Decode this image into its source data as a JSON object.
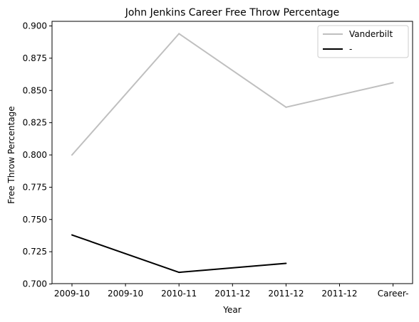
{
  "chart_data": {
    "type": "line",
    "title": "John Jenkins  Career Free Throw Percentage",
    "xlabel": "Year",
    "ylabel": "Free Throw Percentage",
    "categories": [
      "2009-10",
      "2009-10",
      "2010-11",
      "2011-12",
      "2011-12",
      "2011-12",
      "Career-"
    ],
    "ylim": [
      0.7,
      0.9
    ],
    "yticks": [
      0.7,
      0.725,
      0.75,
      0.775,
      0.8,
      0.825,
      0.85,
      0.875,
      0.9
    ],
    "ytick_labels": [
      "0.700",
      "0.725",
      "0.750",
      "0.775",
      "0.800",
      "0.825",
      "0.850",
      "0.875",
      "0.900"
    ],
    "grid": false,
    "legend_position": "top-right",
    "series": [
      {
        "name": "Vanderbilt",
        "color": "#bfbfbf",
        "points": [
          {
            "x_index": 0,
            "y": 0.8
          },
          {
            "x_index": 2,
            "y": 0.894
          },
          {
            "x_index": 4,
            "y": 0.837
          },
          {
            "x_index": 6,
            "y": 0.856
          }
        ]
      },
      {
        "name": "-",
        "color": "#000000",
        "points": [
          {
            "x_index": 0,
            "y": 0.738
          },
          {
            "x_index": 2,
            "y": 0.709
          },
          {
            "x_index": 4,
            "y": 0.716
          }
        ]
      }
    ]
  }
}
